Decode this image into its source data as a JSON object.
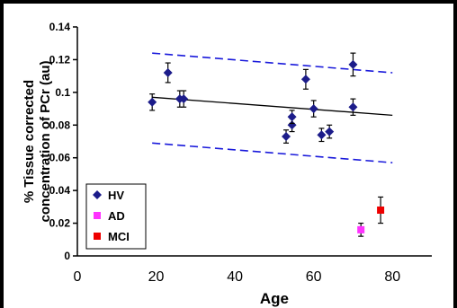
{
  "chart_data": {
    "type": "scatter",
    "xlabel": "Age",
    "ylabel_lines": [
      "% Tissue corrected",
      "concentration of PCr (au)"
    ],
    "xlim": [
      0,
      90
    ],
    "ylim": [
      0,
      0.14
    ],
    "x_ticks": [
      0,
      20,
      40,
      60,
      80
    ],
    "y_ticks": [
      0,
      0.02,
      0.04,
      0.06,
      0.08,
      0.1,
      0.12,
      0.14
    ],
    "y_tick_labels": [
      "0",
      "0.02",
      "0.04",
      "0.06",
      "0.08",
      "0.1",
      "0.12",
      "0.14"
    ],
    "grid": false,
    "legend_position": "bottom-left",
    "series": [
      {
        "name": "HV",
        "marker": "diamond",
        "color": "#1c1c8a",
        "points": [
          {
            "x": 19,
            "y": 0.094,
            "err": 0.005
          },
          {
            "x": 23,
            "y": 0.112,
            "err": 0.006
          },
          {
            "x": 26,
            "y": 0.096,
            "err": 0.005
          },
          {
            "x": 27,
            "y": 0.096,
            "err": 0.005
          },
          {
            "x": 53,
            "y": 0.073,
            "err": 0.004
          },
          {
            "x": 54.5,
            "y": 0.08,
            "err": 0.004
          },
          {
            "x": 54.5,
            "y": 0.085,
            "err": 0.004
          },
          {
            "x": 58,
            "y": 0.108,
            "err": 0.006
          },
          {
            "x": 60,
            "y": 0.09,
            "err": 0.005
          },
          {
            "x": 62,
            "y": 0.074,
            "err": 0.004
          },
          {
            "x": 64,
            "y": 0.076,
            "err": 0.004
          },
          {
            "x": 70,
            "y": 0.091,
            "err": 0.005
          },
          {
            "x": 70,
            "y": 0.117,
            "err": 0.007
          }
        ]
      },
      {
        "name": "AD",
        "marker": "square",
        "color": "#ff33ff",
        "points": [
          {
            "x": 72,
            "y": 0.016,
            "err": 0.004
          }
        ]
      },
      {
        "name": "MCI",
        "marker": "square",
        "color": "#ee0000",
        "points": [
          {
            "x": 77,
            "y": 0.028,
            "err": 0.008
          }
        ]
      }
    ],
    "lines": [
      {
        "role": "fit",
        "style": "solid",
        "color": "#000000",
        "points": [
          [
            19,
            0.097
          ],
          [
            80,
            0.086
          ]
        ]
      },
      {
        "role": "upper",
        "style": "dashed",
        "color": "#1a1adb",
        "points": [
          [
            19,
            0.124
          ],
          [
            80,
            0.112
          ]
        ]
      },
      {
        "role": "lower",
        "style": "dashed",
        "color": "#1a1adb",
        "points": [
          [
            19,
            0.069
          ],
          [
            80,
            0.057
          ]
        ]
      }
    ]
  }
}
